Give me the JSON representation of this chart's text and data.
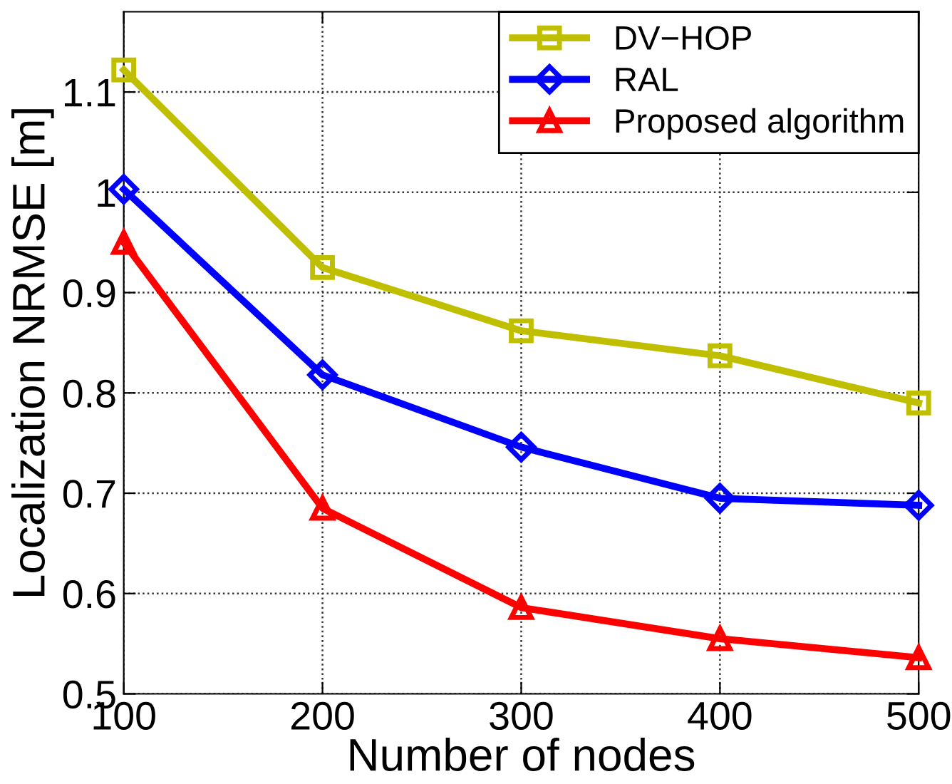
{
  "chart_data": {
    "type": "line",
    "xlabel": "Number of nodes",
    "ylabel": "Localization NRMSE [m]",
    "x": [
      100,
      200,
      300,
      400,
      500
    ],
    "series": [
      {
        "name": "DV−HOP",
        "color": "#bfbf00",
        "marker": "square",
        "values": [
          1.122,
          0.925,
          0.862,
          0.837,
          0.79
        ]
      },
      {
        "name": "RAL",
        "color": "#0000ff",
        "marker": "diamond",
        "values": [
          1.003,
          0.818,
          0.746,
          0.695,
          0.688
        ]
      },
      {
        "name": "Proposed algorithm",
        "color": "#ff0000",
        "marker": "triangle",
        "values": [
          0.95,
          0.685,
          0.586,
          0.555,
          0.536
        ]
      }
    ],
    "xlim": [
      100,
      500
    ],
    "xticks": [
      100,
      200,
      300,
      400,
      500
    ],
    "ylim": [
      0.5,
      1.18
    ],
    "yticks": [
      0.5,
      0.6,
      0.7,
      0.8,
      0.9,
      1,
      1.1
    ],
    "grid": true,
    "legend": "top right",
    "line_style": "solid"
  }
}
